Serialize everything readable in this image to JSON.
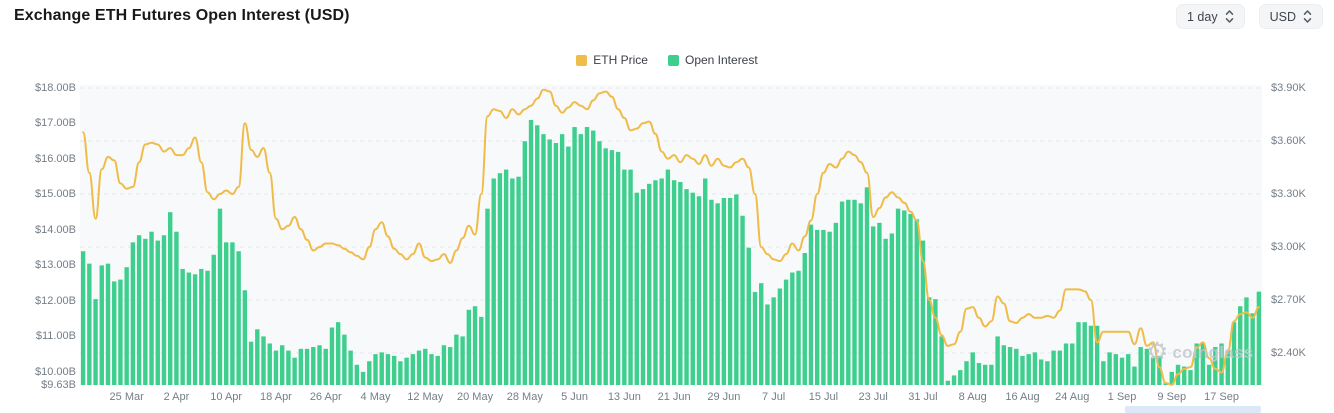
{
  "header": {
    "title": "Exchange ETH Futures Open Interest (USD)"
  },
  "controls": {
    "interval": {
      "value": "1 day"
    },
    "currency": {
      "value": "USD"
    }
  },
  "legend": [
    {
      "label": "ETH Price",
      "color": "#eebd4a"
    },
    {
      "label": "Open Interest",
      "color": "#3ecf8e"
    }
  ],
  "watermark": {
    "text": "coinglass"
  },
  "chart_data": {
    "type": "mixed",
    "title": "Exchange ETH Futures Open Interest (USD)",
    "x_range": [
      "18 Mar",
      "23 Sep"
    ],
    "grid": "horizontal dashed",
    "legend_position": "top-center",
    "x_ticks": [
      {
        "label": "25 Mar",
        "day": 7
      },
      {
        "label": "2 Apr",
        "day": 15
      },
      {
        "label": "10 Apr",
        "day": 23
      },
      {
        "label": "18 Apr",
        "day": 31
      },
      {
        "label": "26 Apr",
        "day": 39
      },
      {
        "label": "4 May",
        "day": 47
      },
      {
        "label": "12 May",
        "day": 55
      },
      {
        "label": "20 May",
        "day": 63
      },
      {
        "label": "28 May",
        "day": 71
      },
      {
        "label": "5 Jun",
        "day": 79
      },
      {
        "label": "13 Jun",
        "day": 87
      },
      {
        "label": "21 Jun",
        "day": 95
      },
      {
        "label": "29 Jun",
        "day": 103
      },
      {
        "label": "7 Jul",
        "day": 111
      },
      {
        "label": "15 Jul",
        "day": 119
      },
      {
        "label": "23 Jul",
        "day": 127
      },
      {
        "label": "31 Jul",
        "day": 135
      },
      {
        "label": "8 Aug",
        "day": 143
      },
      {
        "label": "16 Aug",
        "day": 151
      },
      {
        "label": "24 Aug",
        "day": 159
      },
      {
        "label": "1 Sep",
        "day": 167
      },
      {
        "label": "9 Sep",
        "day": 175
      },
      {
        "label": "17 Sep",
        "day": 183
      }
    ],
    "left_axis": {
      "unit": "USD billions",
      "range": [
        9.63,
        18.0
      ],
      "ticks": [
        {
          "label": "$18.00B",
          "value": 18.0
        },
        {
          "label": "$17.00B",
          "value": 17.0
        },
        {
          "label": "$16.00B",
          "value": 16.0
        },
        {
          "label": "$15.00B",
          "value": 15.0
        },
        {
          "label": "$14.00B",
          "value": 14.0
        },
        {
          "label": "$13.00B",
          "value": 13.0
        },
        {
          "label": "$12.00B",
          "value": 12.0
        },
        {
          "label": "$11.00B",
          "value": 11.0
        },
        {
          "label": "$10.00B",
          "value": 10.0
        },
        {
          "label": "$9.63B",
          "value": 9.63
        }
      ]
    },
    "right_axis": {
      "unit": "USD thousands",
      "range": [
        2.4,
        3.9
      ],
      "ticks": [
        {
          "label": "$3.90K",
          "value": 3.9
        },
        {
          "label": "$3.60K",
          "value": 3.6
        },
        {
          "label": "$3.30K",
          "value": 3.3
        },
        {
          "label": "$3.00K",
          "value": 3.0
        },
        {
          "label": "$2.70K",
          "value": 2.7
        },
        {
          "label": "$2.40K",
          "value": 2.4
        }
      ]
    },
    "series": [
      {
        "name": "Open Interest",
        "type": "bar",
        "axis": "left",
        "color": "#3ecf8e",
        "values": [
          13.4,
          13.05,
          12.05,
          13.0,
          13.05,
          12.55,
          12.6,
          12.95,
          13.65,
          13.85,
          13.75,
          13.95,
          13.7,
          13.85,
          14.5,
          13.95,
          12.9,
          12.8,
          12.75,
          12.9,
          12.85,
          13.3,
          14.6,
          13.65,
          13.65,
          13.4,
          12.3,
          10.85,
          11.2,
          11.0,
          10.8,
          10.6,
          10.75,
          10.6,
          10.4,
          10.65,
          10.65,
          10.7,
          10.75,
          10.65,
          11.25,
          11.4,
          11.05,
          10.6,
          10.2,
          10.0,
          10.3,
          10.5,
          10.55,
          10.5,
          10.45,
          10.3,
          10.4,
          10.5,
          10.6,
          10.65,
          10.5,
          10.45,
          10.75,
          10.7,
          11.05,
          11.0,
          11.75,
          11.85,
          11.55,
          14.6,
          15.45,
          15.6,
          15.7,
          15.45,
          15.5,
          16.5,
          17.1,
          16.95,
          16.7,
          16.55,
          16.45,
          16.7,
          16.35,
          16.9,
          16.7,
          16.9,
          16.8,
          16.5,
          16.3,
          16.25,
          16.2,
          15.7,
          15.7,
          15.05,
          15.15,
          15.3,
          15.4,
          15.45,
          15.7,
          15.4,
          15.35,
          15.15,
          15.05,
          14.95,
          15.45,
          14.85,
          14.75,
          14.9,
          14.9,
          15.0,
          14.4,
          13.5,
          12.25,
          12.5,
          11.9,
          12.1,
          12.35,
          12.6,
          12.8,
          12.85,
          13.35,
          14.15,
          14.0,
          14.0,
          13.95,
          14.2,
          14.8,
          14.85,
          14.85,
          14.75,
          15.2,
          14.1,
          14.2,
          13.75,
          13.9,
          14.6,
          14.55,
          14.45,
          14.3,
          13.7,
          12.1,
          12.05,
          11.0,
          9.75,
          9.9,
          10.05,
          10.3,
          10.55,
          10.25,
          10.2,
          10.2,
          11.0,
          10.75,
          10.7,
          10.65,
          10.45,
          10.5,
          10.55,
          10.35,
          10.3,
          10.6,
          10.6,
          10.8,
          10.8,
          11.4,
          11.4,
          11.3,
          11.3,
          10.3,
          10.55,
          10.5,
          10.4,
          10.5,
          10.15,
          10.7,
          10.65,
          10.4,
          10.45,
          9.68,
          10.0,
          10.2,
          10.15,
          10.05,
          10.8,
          10.8,
          10.2,
          10.7,
          10.8,
          10.6,
          11.4,
          11.85,
          12.1,
          11.65,
          12.26
        ]
      },
      {
        "name": "ETH Price",
        "type": "line",
        "axis": "right",
        "color": "#efbc49",
        "values": [
          3.65,
          3.42,
          3.16,
          3.44,
          3.51,
          3.49,
          3.36,
          3.33,
          3.34,
          3.48,
          3.58,
          3.59,
          3.58,
          3.54,
          3.56,
          3.52,
          3.52,
          3.56,
          3.62,
          3.48,
          3.31,
          3.27,
          3.3,
          3.32,
          3.3,
          3.34,
          3.7,
          3.55,
          3.51,
          3.56,
          3.42,
          3.16,
          3.1,
          3.12,
          3.17,
          3.1,
          3.04,
          2.98,
          3.0,
          3.02,
          3.02,
          3.01,
          2.99,
          2.97,
          2.95,
          2.93,
          3.0,
          3.1,
          3.14,
          3.06,
          2.99,
          2.96,
          2.93,
          2.96,
          3.02,
          2.94,
          2.92,
          2.93,
          2.96,
          2.91,
          2.98,
          3.05,
          3.12,
          3.07,
          3.3,
          3.74,
          3.78,
          3.77,
          3.73,
          3.78,
          3.75,
          3.78,
          3.8,
          3.84,
          3.89,
          3.88,
          3.8,
          3.76,
          3.79,
          3.82,
          3.8,
          3.78,
          3.83,
          3.87,
          3.88,
          3.85,
          3.78,
          3.73,
          3.66,
          3.67,
          3.7,
          3.71,
          3.64,
          3.54,
          3.5,
          3.52,
          3.48,
          3.52,
          3.5,
          3.47,
          3.52,
          3.46,
          3.5,
          3.46,
          3.45,
          3.48,
          3.5,
          3.45,
          3.3,
          3.0,
          2.96,
          2.93,
          2.92,
          2.96,
          3.02,
          2.98,
          3.06,
          3.15,
          3.3,
          3.42,
          3.47,
          3.45,
          3.5,
          3.54,
          3.52,
          3.48,
          3.42,
          3.17,
          3.22,
          3.28,
          3.31,
          3.28,
          3.25,
          3.2,
          3.15,
          2.92,
          2.7,
          2.6,
          2.5,
          2.44,
          2.45,
          2.52,
          2.65,
          2.66,
          2.6,
          2.55,
          2.58,
          2.72,
          2.68,
          2.58,
          2.57,
          2.6,
          2.62,
          2.6,
          2.6,
          2.61,
          2.6,
          2.64,
          2.76,
          2.76,
          2.76,
          2.75,
          2.7,
          2.46,
          2.52,
          2.52,
          2.52,
          2.52,
          2.52,
          2.45,
          2.54,
          2.44,
          2.46,
          2.32,
          2.23,
          2.22,
          2.28,
          2.31,
          2.32,
          2.43,
          2.46,
          2.37,
          2.31,
          2.29,
          2.41,
          2.58,
          2.62,
          2.63,
          2.6,
          2.66
        ]
      }
    ]
  }
}
